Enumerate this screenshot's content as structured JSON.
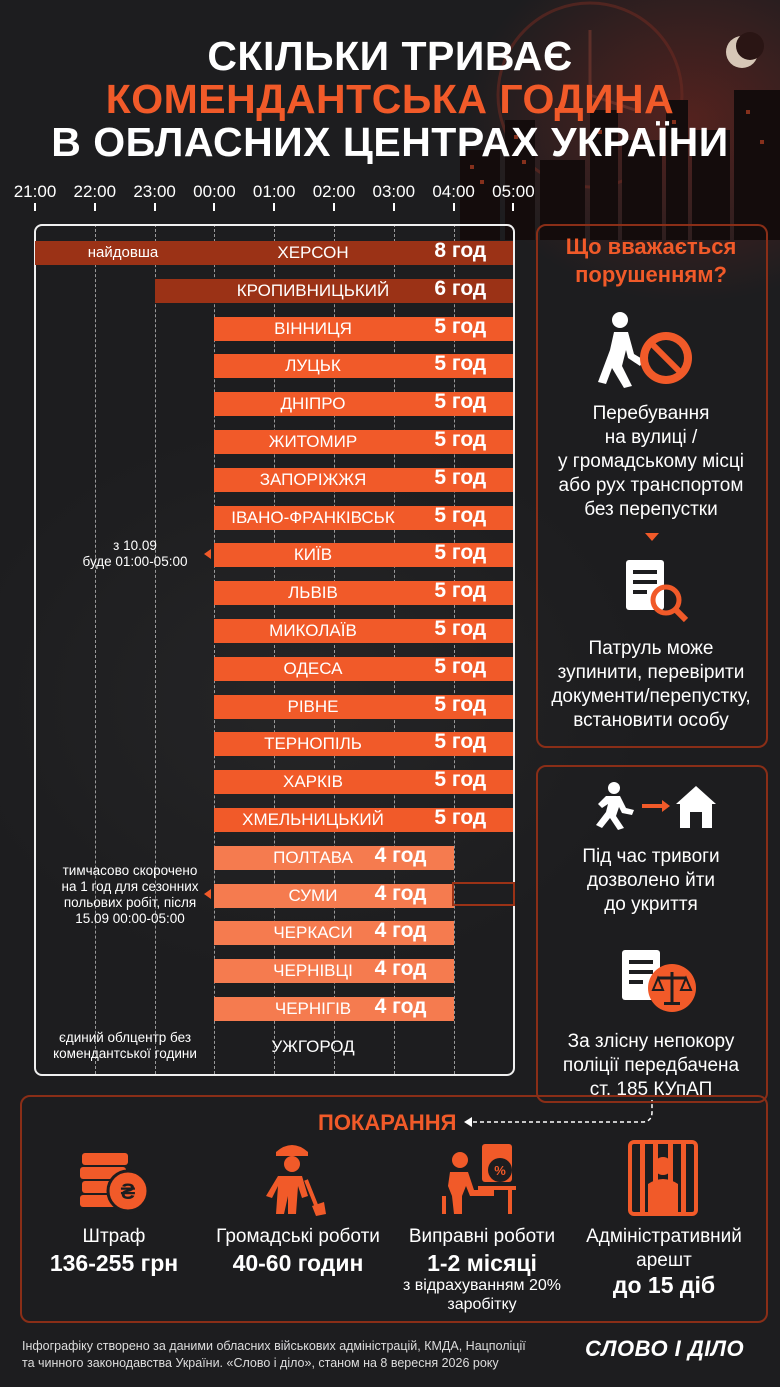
{
  "title": {
    "line1": "СКІЛЬКИ ТРИВАЄ",
    "line2": "КОМЕНДАНТСЬКА ГОДИНА",
    "line3": "В ОБЛАСНИХ ЦЕНТРАХ УКРАЇНИ"
  },
  "timeline": {
    "hours": [
      "21:00",
      "22:00",
      "23:00",
      "00:00",
      "01:00",
      "02:00",
      "03:00",
      "04:00",
      "05:00"
    ]
  },
  "cities": [
    {
      "name": "ХЕРСОН",
      "start": "21:00",
      "end": "05:00",
      "duration": "8 год",
      "tone": "dark",
      "flag": "найдовша"
    },
    {
      "name": "КРОПИВНИЦЬКИЙ",
      "start": "23:00",
      "end": "05:00",
      "duration": "6 год",
      "tone": "dark"
    },
    {
      "name": "ВІННИЦЯ",
      "start": "00:00",
      "end": "05:00",
      "duration": "5 год",
      "tone": "med"
    },
    {
      "name": "ЛУЦЬК",
      "start": "00:00",
      "end": "05:00",
      "duration": "5 год",
      "tone": "med"
    },
    {
      "name": "ДНІПРО",
      "start": "00:00",
      "end": "05:00",
      "duration": "5 год",
      "tone": "med"
    },
    {
      "name": "ЖИТОМИР",
      "start": "00:00",
      "end": "05:00",
      "duration": "5 год",
      "tone": "med"
    },
    {
      "name": "ЗАПОРІЖЖЯ",
      "start": "00:00",
      "end": "05:00",
      "duration": "5 год",
      "tone": "med"
    },
    {
      "name": "ІВАНО-ФРАНКІВСЬК",
      "start": "00:00",
      "end": "05:00",
      "duration": "5 год",
      "tone": "med"
    },
    {
      "name": "КИЇВ",
      "start": "00:00",
      "end": "05:00",
      "duration": "5 год",
      "tone": "med"
    },
    {
      "name": "ЛЬВІВ",
      "start": "00:00",
      "end": "05:00",
      "duration": "5 год",
      "tone": "med"
    },
    {
      "name": "МИКОЛАЇВ",
      "start": "00:00",
      "end": "05:00",
      "duration": "5 год",
      "tone": "med"
    },
    {
      "name": "ОДЕСА",
      "start": "00:00",
      "end": "05:00",
      "duration": "5 год",
      "tone": "med"
    },
    {
      "name": "РІВНЕ",
      "start": "00:00",
      "end": "05:00",
      "duration": "5 год",
      "tone": "med"
    },
    {
      "name": "ТЕРНОПІЛЬ",
      "start": "00:00",
      "end": "05:00",
      "duration": "5 год",
      "tone": "med"
    },
    {
      "name": "ХАРКІВ",
      "start": "00:00",
      "end": "05:00",
      "duration": "5 год",
      "tone": "med"
    },
    {
      "name": "ХМЕЛЬНИЦЬКИЙ",
      "start": "00:00",
      "end": "05:00",
      "duration": "5 год",
      "tone": "med"
    },
    {
      "name": "ПОЛТАВА",
      "start": "00:00",
      "end": "04:00",
      "duration": "4 год",
      "tone": "light"
    },
    {
      "name": "СУМИ",
      "start": "00:00",
      "end": "04:00",
      "duration": "4 год",
      "tone": "light"
    },
    {
      "name": "ЧЕРКАСИ",
      "start": "00:00",
      "end": "04:00",
      "duration": "4 год",
      "tone": "light"
    },
    {
      "name": "ЧЕРНІВЦІ",
      "start": "00:00",
      "end": "04:00",
      "duration": "4 год",
      "tone": "light"
    },
    {
      "name": "ЧЕРНІГІВ",
      "start": "00:00",
      "end": "04:00",
      "duration": "4 год",
      "tone": "light"
    },
    {
      "name": "УЖГОРОД",
      "start": null,
      "end": null,
      "duration": "",
      "tone": "none"
    }
  ],
  "notes": {
    "kyiv_line1": "з 10.09",
    "kyiv_line2": "буде 01:00-05:00",
    "sumy_line1": "тимчасово скорочено",
    "sumy_line2": "на 1 год для сезонних",
    "sumy_line3": "польових робіт, після",
    "sumy_line4": "15.09 00:00-05:00",
    "uzh_line1": "єдиний облцентр без",
    "uzh_line2": "комендантської години"
  },
  "violation": {
    "title_line1": "Що вважається",
    "title_line2": "порушенням?",
    "text1_lines": [
      "Перебування",
      "на вулиці /",
      "у громадському місці",
      "або рух транспортом",
      "без перепустки"
    ],
    "text2_lines": [
      "Патруль може",
      "зупинити, перевірити",
      "документи/перепустку,",
      "встановити особу"
    ]
  },
  "alarm": {
    "text1_lines": [
      "Під час тривоги",
      "дозволено йти",
      "до укриття"
    ],
    "text2_lines": [
      "За злісну непокору",
      "поліції передбачена",
      "ст. 185 КУпАП"
    ]
  },
  "penalties": {
    "title": "ПОКАРАННЯ",
    "items": [
      {
        "label": "Штраф",
        "value": "136-255 грн",
        "note1": "",
        "note2": "",
        "icon": "money-icon"
      },
      {
        "label": "Громадські роботи",
        "value": "40-60 годин",
        "note1": "",
        "note2": "",
        "icon": "shovel-worker-icon"
      },
      {
        "label": "Виправні роботи",
        "value": "1-2 місяці",
        "note1": "з відрахуванням 20%",
        "note2": "заробітку",
        "icon": "office-worker-icon"
      },
      {
        "label": "Адміністративний",
        "value": "арешт",
        "note1": "до 15 діб",
        "note2": "",
        "icon": "jail-icon"
      }
    ]
  },
  "footer": {
    "line1": "Інфографіку створено за даними обласних військових адміністрацій, КМДА, Нацполіції",
    "line2": "та чинного законодавства України. «Слово і діло», станом на 8 вересня 2026 року"
  },
  "brand": {
    "logo": "СЛОВО І ДІЛО",
    "accent": "#f15a29",
    "dark_bar": "#9b3216",
    "med_bar": "#f15a29",
    "light_bar": "#f57b4f",
    "background": "#1d1d1f"
  }
}
